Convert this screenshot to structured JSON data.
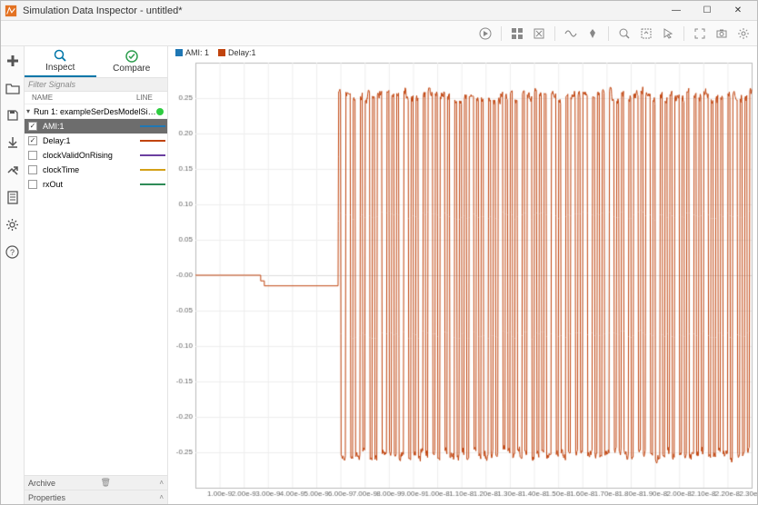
{
  "window": {
    "title": "Simulation Data Inspector - untitled*",
    "min_label": "—",
    "max_label": "☐",
    "close_label": "✕"
  },
  "tabs": {
    "inspect": "Inspect",
    "compare": "Compare"
  },
  "filter_placeholder": "Filter Signals",
  "columns": {
    "name": "NAME",
    "line": "LINE"
  },
  "run": {
    "label": "Run 1: exampleSerDesModelSimula…",
    "status_color": "#2ecc40"
  },
  "signals": [
    {
      "name": "AMI:1",
      "checked": true,
      "selected": true,
      "color": "#1f77b4"
    },
    {
      "name": "Delay:1",
      "checked": true,
      "selected": false,
      "color": "#c1440e"
    },
    {
      "name": "clockValidOnRising",
      "checked": false,
      "selected": false,
      "color": "#6b3fa0"
    },
    {
      "name": "clockTime",
      "checked": false,
      "selected": false,
      "color": "#d4a017"
    },
    {
      "name": "rxOut",
      "checked": false,
      "selected": false,
      "color": "#2e8b57"
    }
  ],
  "sections": {
    "archive": "Archive",
    "properties": "Properties"
  },
  "legend": [
    {
      "label": "AMI: 1",
      "color": "#1f77b4"
    },
    {
      "label": "Delay:1",
      "color": "#c1440e"
    }
  ],
  "chart": {
    "type": "line",
    "background_color": "#ffffff",
    "plot_background": "#ffffff",
    "axis_color": "#bbbbbb",
    "grid_color": "#eeeeee",
    "tick_fontsize": 8,
    "tick_color": "#666666",
    "xlim": [
      0,
      2.3e-08
    ],
    "ylim": [
      -0.3,
      0.3
    ],
    "ytick_step": 0.05,
    "x_ticks": [
      1e-09,
      2e-09,
      3e-09,
      4e-09,
      5e-09,
      6e-09,
      7e-09,
      8e-09,
      9e-09,
      1e-08,
      1.1e-08,
      1.2e-08,
      1.3e-08,
      1.4e-08,
      1.5e-08,
      1.6e-08,
      1.7e-08,
      1.8e-08,
      1.9e-08,
      2e-08,
      2.1e-08,
      2.2e-08,
      2.3e-08
    ],
    "x_tick_labels": [
      "1.00e-9",
      "2.00e-9",
      "3.00e-9",
      "4.00e-9",
      "5.00e-9",
      "6.00e-9",
      "7.00e-9",
      "8.00e-9",
      "9.00e-9",
      "1.00e-8",
      "1.10e-8",
      "1.20e-8",
      "1.30e-8",
      "1.40e-8",
      "1.50e-8",
      "1.60e-8",
      "1.70e-8",
      "1.80e-8",
      "1.90e-8",
      "2.00e-8",
      "2.10e-8",
      "2.20e-8",
      "2.30e-8"
    ],
    "series": [
      {
        "name": "Delay:1",
        "color": "#c1440e",
        "line_width": 1,
        "baseline_until": 5.9e-09,
        "flat_segments": [
          {
            "x0": 0,
            "x1": 2.7e-09,
            "y": 0.0
          },
          {
            "x0": 2.7e-09,
            "x1": 2.85e-09,
            "y": -0.008
          },
          {
            "x0": 2.85e-09,
            "x1": 5.9e-09,
            "y": -0.015
          }
        ],
        "oscillation": {
          "x_start": 5.9e-09,
          "x_end": 2.3e-08,
          "period": 2e-10,
          "high": 0.255,
          "low": -0.255,
          "pattern": [
            1,
            -1,
            -1,
            1,
            1,
            -1,
            1,
            -1,
            -1,
            1,
            -1,
            1,
            1,
            -1,
            1,
            -1,
            1,
            1,
            -1,
            -1,
            1,
            -1,
            1,
            -1,
            1,
            -1,
            -1,
            1,
            1,
            -1,
            1,
            -1,
            1,
            -1,
            -1,
            1,
            -1,
            1,
            1,
            -1,
            1,
            -1,
            1,
            1,
            -1,
            1,
            -1,
            -1,
            1,
            -1,
            1,
            -1,
            1,
            -1,
            1,
            1,
            -1,
            1,
            -1,
            1,
            -1,
            -1,
            1,
            -1,
            1,
            -1,
            1,
            1,
            -1,
            1,
            -1,
            1,
            -1,
            1,
            -1,
            -1,
            1,
            -1,
            1,
            1,
            -1,
            1,
            -1,
            1,
            -1
          ]
        }
      }
    ]
  },
  "colors": {
    "window_border": "#bbbbbb",
    "titlebar_bg": "#f3f3f3",
    "toolbar_bg": "#fafafa",
    "separator": "#e3e3e3",
    "selected_row_bg": "#6d6d6d",
    "selected_row_fg": "#ffffff",
    "accent": "#0076a8"
  }
}
